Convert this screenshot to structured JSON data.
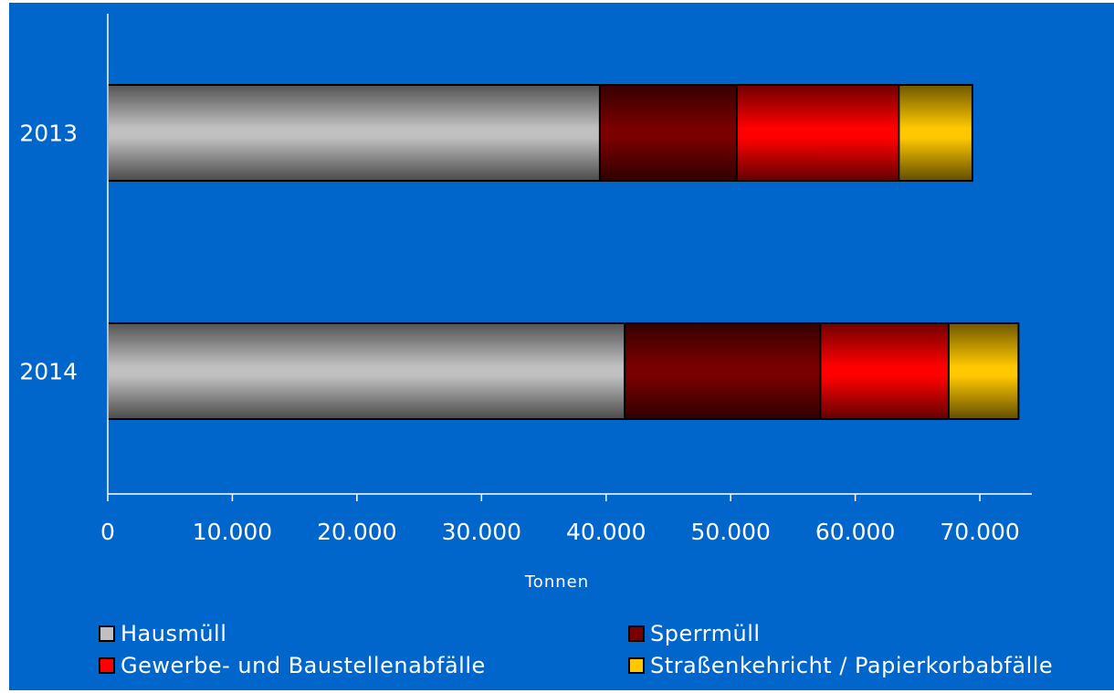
{
  "chart_data": {
    "type": "bar",
    "orientation": "horizontal",
    "stacked": true,
    "categories": [
      "2013",
      "2014"
    ],
    "series": [
      {
        "name": "Hausmüll",
        "values": [
          39500,
          41500
        ],
        "color": "#c0c0c0"
      },
      {
        "name": "Sperrmüll",
        "values": [
          11000,
          15700
        ],
        "color": "#7a0000"
      },
      {
        "name": "Gewerbe- und Baustellenabfälle",
        "values": [
          13000,
          10300
        ],
        "color": "#ff0000"
      },
      {
        "name": "Straßenkehricht / Papierkorbabfälle",
        "values": [
          5900,
          5600
        ],
        "color": "#ffc800"
      }
    ],
    "xlabel": "Tonnen",
    "ylabel": "",
    "xlim": [
      0,
      73000
    ],
    "x_ticks": [
      0,
      10000,
      20000,
      30000,
      40000,
      50000,
      60000,
      70000
    ],
    "x_tick_labels": [
      "0",
      "10.000",
      "20.000",
      "30.000",
      "40.000",
      "50.000",
      "60.000",
      "70.000"
    ],
    "grid": false,
    "legend_position": "bottom",
    "background_color": "#0066cc"
  }
}
